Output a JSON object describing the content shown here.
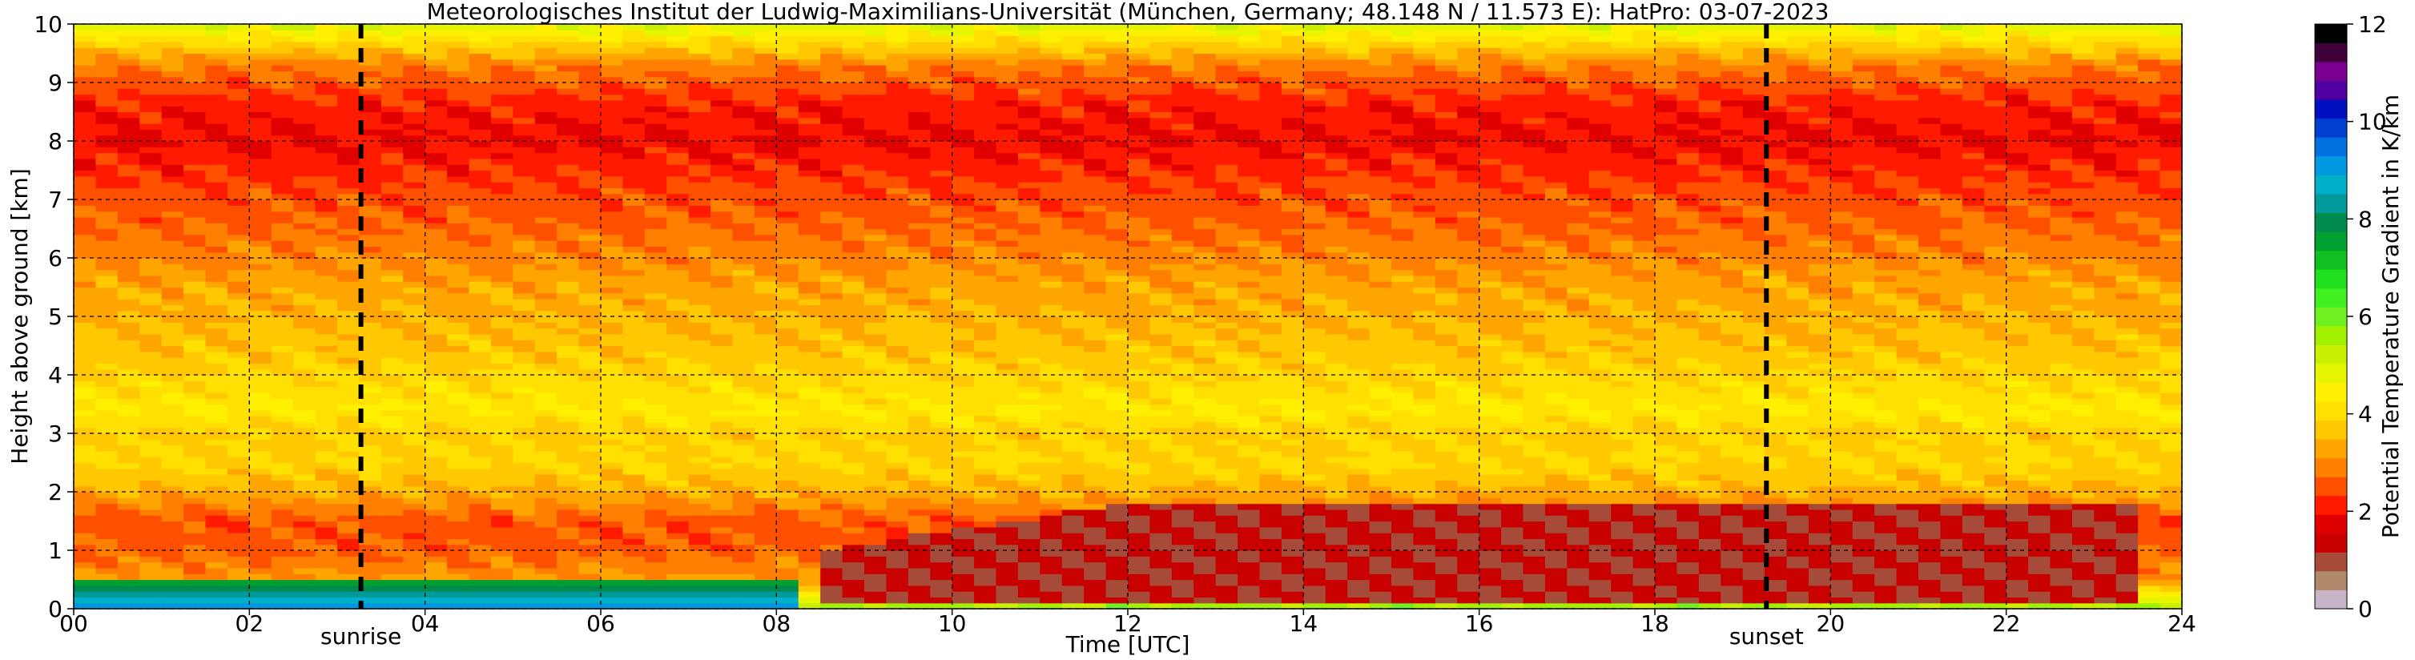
{
  "chart_data": {
    "type": "heatmap",
    "title": "Meteorologisches Institut der Ludwig-Maximilians-Universität (München, Germany; 48.148 N / 11.573 E):    HatPro: 03-07-2023",
    "xlabel": "Time [UTC]",
    "ylabel": "Height above ground [km]",
    "x_ticks": [
      "00",
      "02",
      "04",
      "06",
      "08",
      "10",
      "12",
      "14",
      "16",
      "18",
      "20",
      "22",
      "24"
    ],
    "y_ticks": [
      "0",
      "1",
      "2",
      "3",
      "4",
      "5",
      "6",
      "7",
      "8",
      "9",
      "10"
    ],
    "xlim": [
      0,
      24
    ],
    "ylim": [
      0,
      10
    ],
    "grid": true,
    "markers": [
      {
        "label": "sunrise",
        "time": 3.27
      },
      {
        "label": "sunset",
        "time": 19.27
      }
    ],
    "colorbar": {
      "label": "Potential Temperature Gradient in K/km",
      "ticks": [
        "0",
        "2",
        "4",
        "6",
        "8",
        "10",
        "12"
      ],
      "range": [
        0,
        12
      ],
      "colors": [
        "#c8b4c8",
        "#b08a6a",
        "#a64b3a",
        "#c80000",
        "#e00000",
        "#ff1a00",
        "#ff5000",
        "#ff8000",
        "#ffa500",
        "#ffc800",
        "#ffe000",
        "#fff000",
        "#e8f500",
        "#c8f000",
        "#a0f000",
        "#70f020",
        "#40f020",
        "#20e020",
        "#10c020",
        "#00a030",
        "#008a50",
        "#009a9a",
        "#00b0c8",
        "#0098e0",
        "#0070e0",
        "#0040d0",
        "#0010c0",
        "#5000a0",
        "#7a0090",
        "#40003a",
        "#000000"
      ]
    },
    "value_profile_by_height": [
      {
        "height_km": 0.05,
        "value": 5.5
      },
      {
        "height_km": 0.2,
        "value": 4.5
      },
      {
        "height_km": 0.5,
        "value": 3.2
      },
      {
        "height_km": 1.0,
        "value": 2.6
      },
      {
        "height_km": 1.5,
        "value": 2.5
      },
      {
        "height_km": 2.0,
        "value": 3.4
      },
      {
        "height_km": 2.5,
        "value": 3.9
      },
      {
        "height_km": 3.0,
        "value": 3.8
      },
      {
        "height_km": 3.4,
        "value": 4.3
      },
      {
        "height_km": 3.8,
        "value": 4.0
      },
      {
        "height_km": 4.5,
        "value": 3.6
      },
      {
        "height_km": 5.5,
        "value": 3.3
      },
      {
        "height_km": 6.5,
        "value": 2.7
      },
      {
        "height_km": 7.2,
        "value": 2.4
      },
      {
        "height_km": 8.0,
        "value": 1.9
      },
      {
        "height_km": 8.6,
        "value": 2.1
      },
      {
        "height_km": 9.3,
        "value": 2.9
      },
      {
        "height_km": 9.7,
        "value": 4.0
      },
      {
        "height_km": 10.0,
        "value": 5.0
      }
    ],
    "boundary_layer_heating": {
      "start_time": 8.5,
      "end_time": 23.6,
      "max_height_km": 1.8,
      "value": 1.2
    },
    "near_surface_inversion": {
      "start_time": 0,
      "end_time": 8.3,
      "max_height_km": 0.45,
      "value": 7.5
    }
  }
}
